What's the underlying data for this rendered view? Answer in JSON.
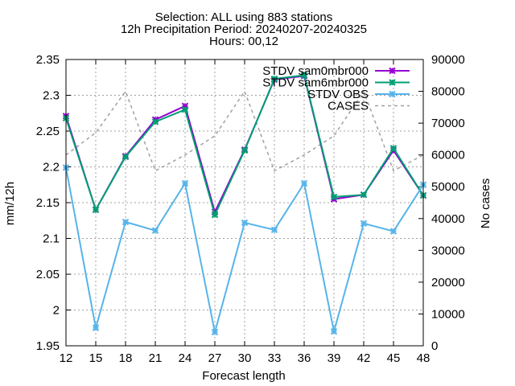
{
  "chart_data": {
    "type": "line",
    "title_lines": [
      "Selection: ALL using   883 stations",
      "12h Precipitation   Period: 20240207-20240325",
      "Hours: 00,12"
    ],
    "xlabel": "Forecast length",
    "ylabel": "mm/12h",
    "y2label": "No cases",
    "x": [
      12,
      15,
      18,
      21,
      24,
      27,
      30,
      33,
      36,
      39,
      42,
      45,
      48
    ],
    "xlim": [
      12,
      48
    ],
    "ylim": [
      1.95,
      2.35
    ],
    "y2lim": [
      0,
      90000
    ],
    "y_ticks": [
      "1.95",
      "2",
      "2.05",
      "2.1",
      "2.15",
      "2.2",
      "2.25",
      "2.3",
      "2.35"
    ],
    "y2_ticks": [
      "0",
      "10000",
      "20000",
      "30000",
      "40000",
      "50000",
      "60000",
      "70000",
      "80000",
      "90000"
    ],
    "grid": true,
    "legend_position": "top-right",
    "series": [
      {
        "name": "STDV sam0mbr000",
        "axis": "left",
        "color": "#9400d3",
        "marker": "x",
        "dashed": false,
        "values": [
          2.271,
          2.14,
          2.215,
          2.266,
          2.285,
          2.137,
          2.224,
          2.322,
          2.327,
          2.155,
          2.161,
          2.223,
          2.16
        ]
      },
      {
        "name": "STDV sam6mbr000",
        "axis": "left",
        "color": "#009e73",
        "marker": "x",
        "dashed": false,
        "values": [
          2.268,
          2.14,
          2.214,
          2.263,
          2.28,
          2.133,
          2.223,
          2.323,
          2.328,
          2.158,
          2.161,
          2.226,
          2.16
        ]
      },
      {
        "name": "STDV OBS",
        "axis": "left",
        "color": "#56b4e9",
        "marker": "x",
        "dashed": false,
        "values": [
          2.199,
          1.975,
          2.123,
          2.111,
          2.177,
          1.969,
          2.122,
          2.112,
          2.177,
          1.97,
          2.121,
          2.11,
          2.175
        ]
      },
      {
        "name": "CASES",
        "axis": "right",
        "color": "#a0a0a0",
        "marker": "none",
        "dashed": true,
        "values": [
          60000,
          67000,
          80000,
          55000,
          60000,
          66000,
          80000,
          55000,
          60000,
          66000,
          80000,
          55000,
          60000
        ]
      }
    ]
  }
}
